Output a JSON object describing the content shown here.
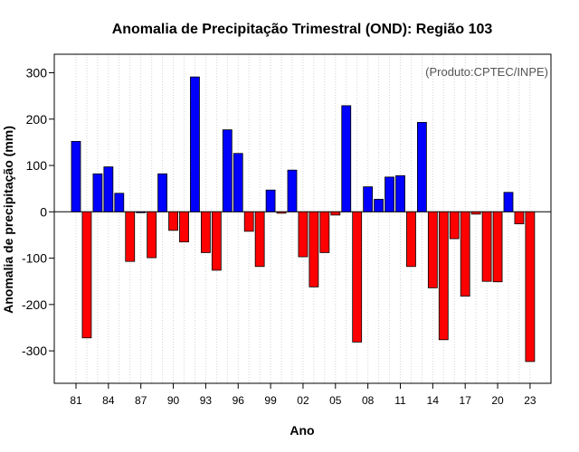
{
  "chart_data": {
    "type": "bar",
    "title": "Anomalia de Precipitação Trimestral (OND): Região 103",
    "xlabel": "Ano",
    "ylabel": "Anomalia de precipitação (mm)",
    "credit": "(Produto:CPTEC/INPE)",
    "ylim": [
      -370,
      340
    ],
    "yticks": [
      -300,
      -200,
      -100,
      0,
      100,
      200,
      300
    ],
    "ytick_labels": [
      "-300",
      "-200",
      "-100",
      "0",
      "100",
      "200",
      "300"
    ],
    "xtick_labels": [
      "81",
      "84",
      "87",
      "90",
      "93",
      "96",
      "99",
      "02",
      "05",
      "08",
      "11",
      "14",
      "17",
      "20",
      "23"
    ],
    "xtick_years": [
      1981,
      1984,
      1987,
      1990,
      1993,
      1996,
      1999,
      2002,
      2005,
      2008,
      2011,
      2014,
      2017,
      2020,
      2023
    ],
    "grid": true,
    "positive_color": "#0000ff",
    "negative_color": "#ff0000",
    "categories": [
      1981,
      1982,
      1983,
      1984,
      1985,
      1986,
      1987,
      1988,
      1989,
      1990,
      1991,
      1992,
      1993,
      1994,
      1995,
      1996,
      1997,
      1998,
      1999,
      2000,
      2001,
      2002,
      2003,
      2004,
      2005,
      2006,
      2007,
      2008,
      2009,
      2010,
      2011,
      2012,
      2013,
      2014,
      2015,
      2016,
      2017,
      2018,
      2019,
      2020,
      2021,
      2022,
      2023
    ],
    "values": [
      152,
      -272,
      82,
      97,
      40,
      -107,
      0,
      -99,
      82,
      -40,
      -65,
      291,
      -88,
      -126,
      177,
      126,
      -42,
      -118,
      47,
      -3,
      90,
      -97,
      -162,
      -88,
      -7,
      229,
      -281,
      54,
      27,
      75,
      78,
      -118,
      193,
      -164,
      -276,
      -58,
      -182,
      -5,
      -150,
      -151,
      42,
      -26,
      -323
    ]
  }
}
